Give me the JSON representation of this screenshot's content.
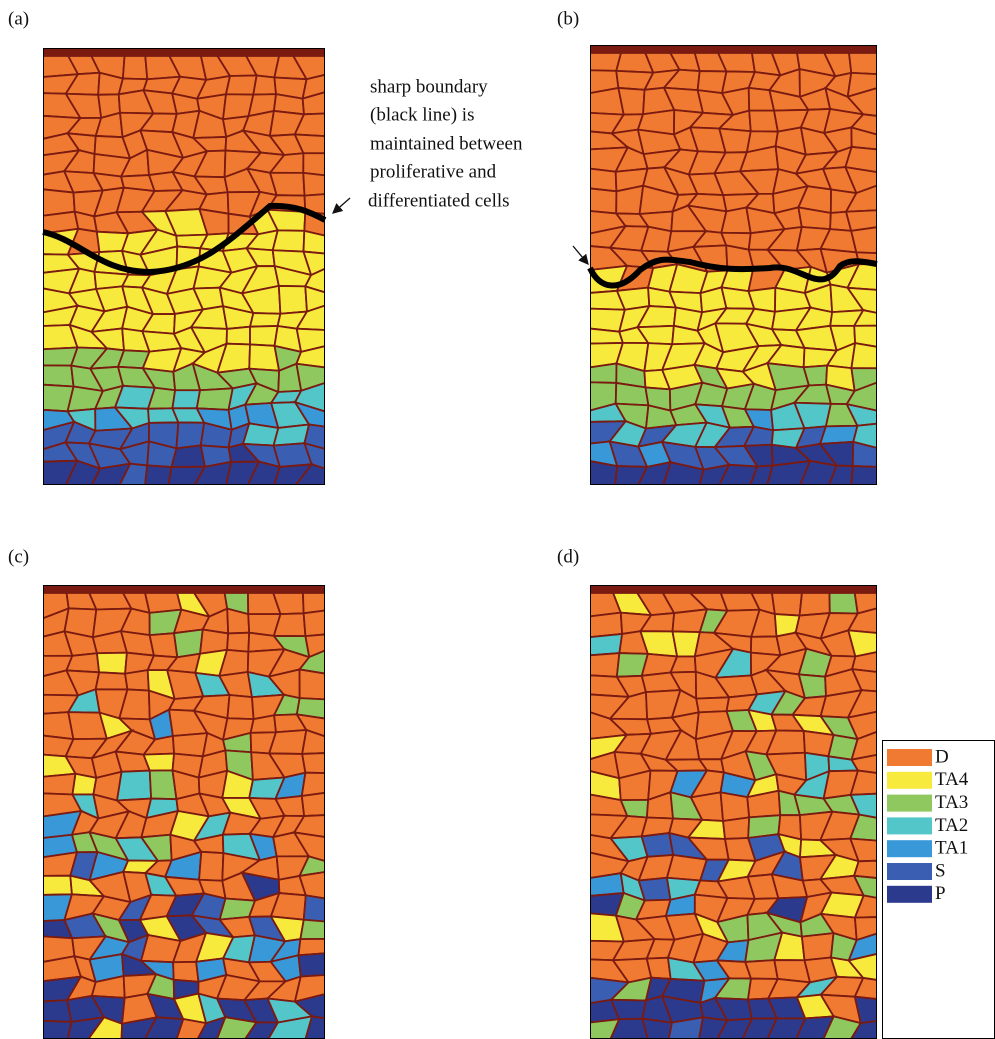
{
  "panels": [
    {
      "label": "(a)"
    },
    {
      "label": "(b)"
    },
    {
      "label": "(c)"
    },
    {
      "label": "(d)"
    }
  ],
  "annotation": [
    "sharp boundary",
    "(black line) is",
    "maintained between",
    "proliferative and",
    "differentiated cells"
  ],
  "legend": [
    {
      "label": "D",
      "color": "#f07a32"
    },
    {
      "label": "TA4",
      "color": "#f8ea3c"
    },
    {
      "label": "TA3",
      "color": "#8ec85e"
    },
    {
      "label": "TA2",
      "color": "#52c6c8"
    },
    {
      "label": "TA1",
      "color": "#3898d8"
    },
    {
      "label": "S",
      "color": "#3a5eb2"
    },
    {
      "label": "P",
      "color": "#2c3a8e"
    }
  ]
}
